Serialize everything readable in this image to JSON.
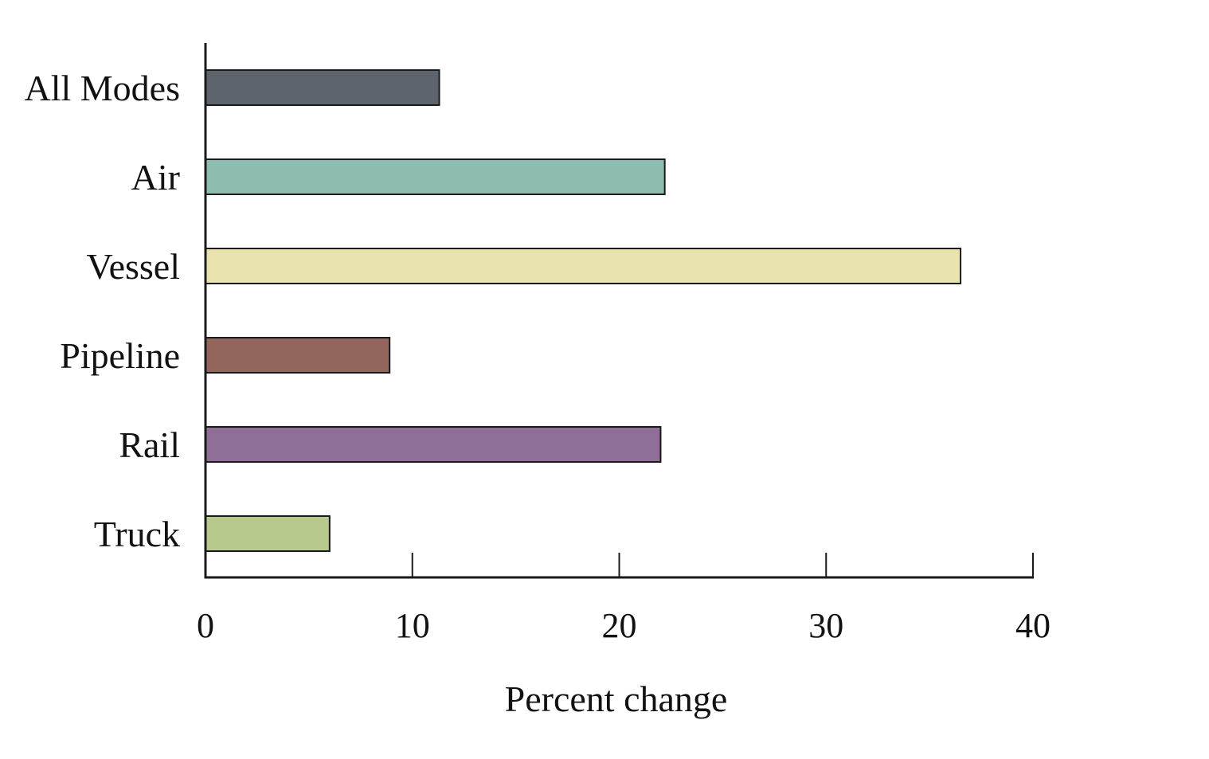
{
  "chart_data": {
    "type": "bar",
    "orientation": "horizontal",
    "categories": [
      "All Modes",
      "Air",
      "Vessel",
      "Pipeline",
      "Rail",
      "Truck"
    ],
    "values": [
      11.3,
      22.2,
      36.5,
      8.9,
      22.0,
      6.0
    ],
    "colors": [
      "#5d646b",
      "#8fbcb1",
      "#e9e3b0",
      "#93655d",
      "#8f6f98",
      "#b7c98d"
    ],
    "xlabel": "Percent change",
    "ylabel": "",
    "xlim": [
      0,
      40
    ],
    "xticks": [
      0,
      10,
      20,
      30,
      40
    ],
    "grid": false,
    "legend": "none"
  }
}
